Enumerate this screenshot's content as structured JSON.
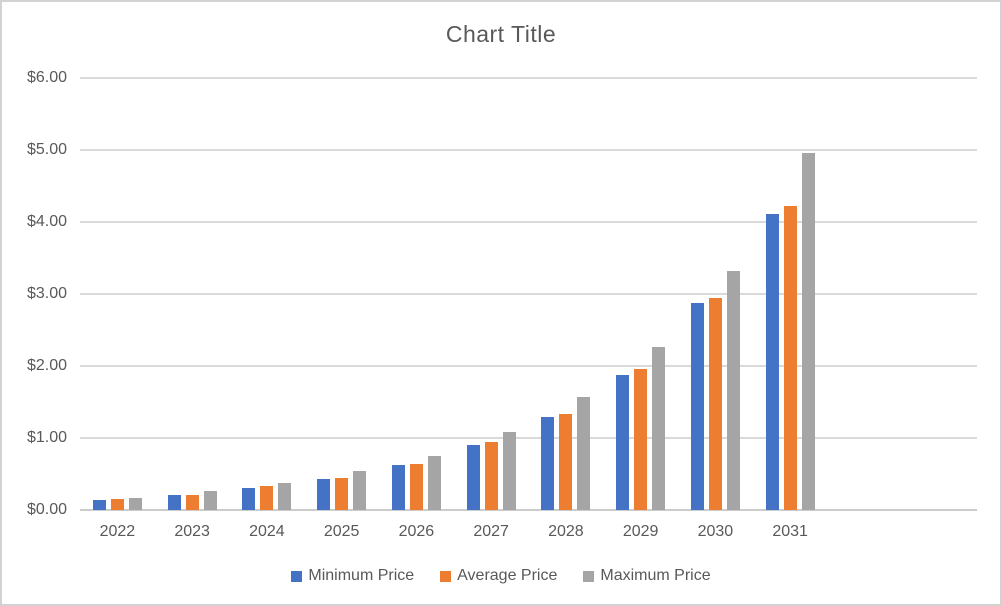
{
  "chart_data": {
    "type": "bar",
    "title": "Chart Title",
    "categories": [
      "2022",
      "2023",
      "2024",
      "2025",
      "2026",
      "2027",
      "2028",
      "2029",
      "2030",
      "2031"
    ],
    "series": [
      {
        "name": "Minimum Price",
        "color": "#4472C4",
        "values": [
          0.14,
          0.21,
          0.31,
          0.43,
          0.62,
          0.9,
          1.29,
          1.88,
          2.87,
          4.11
        ]
      },
      {
        "name": "Average Price",
        "color": "#ED7D31",
        "values": [
          0.15,
          0.21,
          0.33,
          0.45,
          0.64,
          0.94,
          1.34,
          1.96,
          2.95,
          4.22
        ]
      },
      {
        "name": "Maximum Price",
        "color": "#A5A5A5",
        "values": [
          0.16,
          0.26,
          0.37,
          0.54,
          0.75,
          1.09,
          1.57,
          2.27,
          3.32,
          4.96
        ]
      }
    ],
    "y_axis": {
      "ticks": [
        "$0.00",
        "$1.00",
        "$2.00",
        "$3.00",
        "$4.00",
        "$5.00",
        "$6.00"
      ],
      "min": 0,
      "max": 6,
      "grid": true
    },
    "xlabel": "",
    "ylabel": "",
    "legend_position": "bottom",
    "colors": {
      "text": "#595959",
      "gridline": "#d9d9d9",
      "axis_line": "#cccccc",
      "background": "#ffffff",
      "border": "#d2d2d2"
    }
  }
}
